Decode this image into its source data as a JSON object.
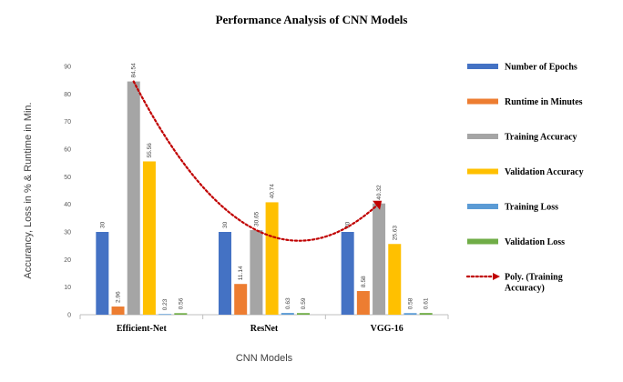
{
  "chart_data": {
    "type": "bar",
    "title": "Performance Analysis of CNN Models",
    "xlabel": "CNN Models",
    "ylabel": "Accurancy, Loss in % & Runtime in Min.",
    "categories": [
      "Efficient-Net",
      "ResNet",
      "VGG-16"
    ],
    "ylim": [
      0,
      90
    ],
    "yticks": [
      0,
      10,
      20,
      30,
      40,
      50,
      60,
      70,
      80,
      90
    ],
    "grid": false,
    "legend_position": "right",
    "series": [
      {
        "name": "Number of Epochs",
        "color": "#4472C4",
        "values": [
          30,
          30,
          30
        ],
        "labels": [
          "30",
          "30",
          "30"
        ]
      },
      {
        "name": "Runtime in Minutes",
        "color": "#ED7D31",
        "values": [
          2.96,
          11.14,
          8.58
        ],
        "labels": [
          "2.96",
          "11.14",
          "8.58"
        ]
      },
      {
        "name": "Training Accuracy",
        "color": "#A5A5A5",
        "values": [
          84.54,
          30.65,
          40.32
        ],
        "labels": [
          "84.54",
          "30.65",
          "40.32"
        ]
      },
      {
        "name": "Validation Accuracy",
        "color": "#FFC000",
        "values": [
          55.56,
          40.74,
          25.63
        ],
        "labels": [
          "55.56",
          "40.74",
          "25.63"
        ]
      },
      {
        "name": "Training Loss",
        "color": "#5B9BD5",
        "values": [
          0.23,
          0.63,
          0.58
        ],
        "labels": [
          "0.23",
          "0.63",
          "0.58"
        ]
      },
      {
        "name": "Validation Loss",
        "color": "#70AD47",
        "values": [
          0.56,
          0.59,
          0.61
        ],
        "labels": [
          "0.56",
          "0.59",
          "0.61"
        ]
      }
    ],
    "trendline": {
      "name": "Poly. (Training Accuracy)",
      "series": "Training Accuracy",
      "type": "polynomial",
      "color": "#C00000",
      "style": "dotted"
    }
  }
}
